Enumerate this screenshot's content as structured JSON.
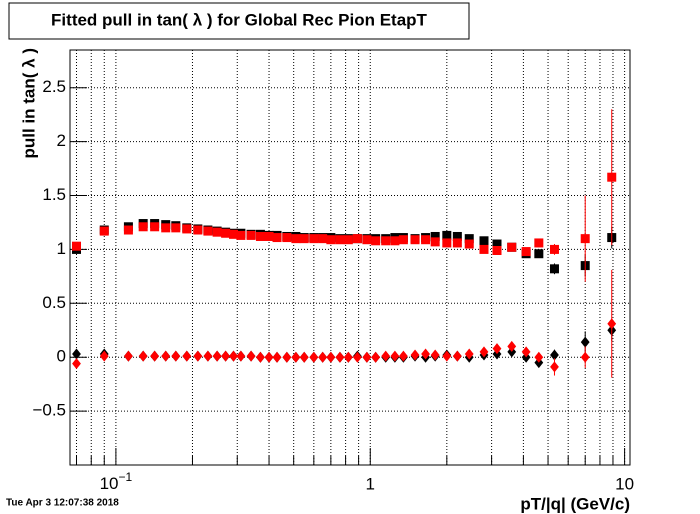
{
  "chart_data": {
    "type": "scatter",
    "title": "Fitted pull in tan( λ ) for Global Rec Pion EtapT",
    "x_label": "pT/|q| (GeV/c)",
    "y_label": "pull in tan( λ )",
    "footer": "Tue Apr  3 12:07:38 2018",
    "xscale": "log",
    "grid": true,
    "xlim": [
      0.066,
      10.5
    ],
    "ylim": [
      -1.0,
      2.85
    ],
    "xticks": [
      {
        "value": 0.1,
        "label": "10",
        "exponent": "−1"
      },
      1,
      10
    ],
    "xminorticks": [
      0.07,
      0.08,
      0.09,
      0.2,
      0.3,
      0.4,
      0.5,
      0.6,
      0.7,
      0.8,
      0.9,
      2,
      3,
      4,
      5,
      6,
      7,
      8,
      9
    ],
    "yticks": [
      {
        "value": -0.5,
        "label": "−0.5"
      },
      0,
      0.5,
      1,
      1.5,
      2,
      2.5
    ],
    "x": [
      0.07,
      0.09,
      0.112,
      0.128,
      0.142,
      0.157,
      0.172,
      0.19,
      0.21,
      0.23,
      0.25,
      0.27,
      0.29,
      0.31,
      0.34,
      0.37,
      0.4,
      0.43,
      0.47,
      0.51,
      0.55,
      0.6,
      0.65,
      0.7,
      0.76,
      0.82,
      0.89,
      0.97,
      1.05,
      1.15,
      1.25,
      1.35,
      1.5,
      1.65,
      1.8,
      2.0,
      2.2,
      2.45,
      2.8,
      3.15,
      3.6,
      4.1,
      4.6,
      5.3,
      7.0,
      8.9
    ],
    "series": [
      {
        "color": "#000000",
        "marker": "square",
        "values": [
          1.0,
          1.18,
          1.21,
          1.24,
          1.24,
          1.23,
          1.22,
          1.2,
          1.19,
          1.18,
          1.17,
          1.16,
          1.15,
          1.15,
          1.14,
          1.14,
          1.13,
          1.13,
          1.12,
          1.12,
          1.11,
          1.11,
          1.11,
          1.11,
          1.1,
          1.1,
          1.1,
          1.1,
          1.1,
          1.1,
          1.11,
          1.11,
          1.1,
          1.11,
          1.12,
          1.13,
          1.12,
          1.1,
          1.08,
          1.05,
          1.02,
          0.96,
          0.96,
          0.82,
          0.85,
          1.11
        ],
        "errors": [
          0.01,
          0.01,
          0.01,
          0.01,
          0.01,
          0.01,
          0.01,
          0.01,
          0.01,
          0.01,
          0.01,
          0.01,
          0.01,
          0.01,
          0.01,
          0.01,
          0.01,
          0.01,
          0.01,
          0.01,
          0.01,
          0.01,
          0.01,
          0.01,
          0.01,
          0.01,
          0.01,
          0.01,
          0.01,
          0.01,
          0.01,
          0.01,
          0.01,
          0.01,
          0.01,
          0.01,
          0.01,
          0.01,
          0.01,
          0.01,
          0.02,
          0.03,
          0.03,
          0.05,
          0.1,
          0.1
        ]
      },
      {
        "color": "#ff0000",
        "marker": "square",
        "values": [
          1.03,
          1.17,
          1.18,
          1.21,
          1.21,
          1.2,
          1.2,
          1.19,
          1.18,
          1.17,
          1.16,
          1.15,
          1.14,
          1.13,
          1.13,
          1.12,
          1.12,
          1.11,
          1.11,
          1.1,
          1.1,
          1.1,
          1.1,
          1.09,
          1.09,
          1.09,
          1.1,
          1.09,
          1.08,
          1.08,
          1.08,
          1.09,
          1.09,
          1.09,
          1.07,
          1.06,
          1.06,
          1.05,
          1.0,
          0.99,
          1.02,
          0.98,
          1.06,
          1.0,
          1.1,
          1.67
        ],
        "errors": [
          0.01,
          0.01,
          0.01,
          0.01,
          0.01,
          0.01,
          0.01,
          0.01,
          0.01,
          0.01,
          0.01,
          0.01,
          0.01,
          0.01,
          0.01,
          0.01,
          0.01,
          0.01,
          0.01,
          0.01,
          0.01,
          0.01,
          0.01,
          0.01,
          0.01,
          0.01,
          0.01,
          0.01,
          0.01,
          0.01,
          0.01,
          0.01,
          0.01,
          0.01,
          0.01,
          0.01,
          0.01,
          0.01,
          0.01,
          0.01,
          0.02,
          0.03,
          0.04,
          0.05,
          0.4,
          0.63
        ]
      },
      {
        "color": "#000000",
        "marker": "diamond",
        "values": [
          0.03,
          0.03,
          0.01,
          0.01,
          0.01,
          0.01,
          0.01,
          0.01,
          0.01,
          0.01,
          0.01,
          0.01,
          0.01,
          0.01,
          0.01,
          0.0,
          0.0,
          0.0,
          0.0,
          0.0,
          0.0,
          0.0,
          0.0,
          0.0,
          0.0,
          0.0,
          0.01,
          0.0,
          0.0,
          0.0,
          0.0,
          0.0,
          0.01,
          0.0,
          0.01,
          0.02,
          0.01,
          0.0,
          0.02,
          0.03,
          0.05,
          0.0,
          -0.05,
          0.02,
          0.14,
          0.25
        ],
        "errors": [
          0.01,
          0.01,
          0.01,
          0.01,
          0.01,
          0.01,
          0.01,
          0.01,
          0.01,
          0.01,
          0.01,
          0.01,
          0.01,
          0.01,
          0.01,
          0.01,
          0.01,
          0.01,
          0.01,
          0.01,
          0.01,
          0.01,
          0.01,
          0.01,
          0.01,
          0.01,
          0.01,
          0.01,
          0.01,
          0.01,
          0.01,
          0.01,
          0.01,
          0.01,
          0.01,
          0.01,
          0.01,
          0.01,
          0.01,
          0.01,
          0.02,
          0.03,
          0.04,
          0.05,
          0.1,
          0.1
        ]
      },
      {
        "color": "#ff0000",
        "marker": "diamond",
        "values": [
          -0.06,
          0.01,
          0.01,
          0.01,
          0.01,
          0.01,
          0.01,
          0.01,
          0.01,
          0.01,
          0.01,
          0.01,
          0.01,
          0.01,
          0.01,
          0.0,
          0.0,
          0.0,
          0.0,
          0.0,
          0.0,
          0.0,
          0.0,
          0.0,
          0.0,
          0.0,
          0.0,
          0.0,
          0.0,
          0.01,
          0.01,
          0.01,
          0.02,
          0.03,
          0.02,
          0.01,
          0.01,
          0.03,
          0.05,
          0.08,
          0.1,
          0.05,
          0.0,
          -0.09,
          0.0,
          0.31
        ],
        "errors": [
          0.01,
          0.01,
          0.01,
          0.01,
          0.01,
          0.01,
          0.01,
          0.01,
          0.01,
          0.01,
          0.01,
          0.01,
          0.01,
          0.01,
          0.01,
          0.01,
          0.01,
          0.01,
          0.01,
          0.01,
          0.01,
          0.01,
          0.01,
          0.01,
          0.01,
          0.01,
          0.01,
          0.01,
          0.01,
          0.01,
          0.01,
          0.01,
          0.01,
          0.01,
          0.01,
          0.01,
          0.01,
          0.01,
          0.01,
          0.01,
          0.02,
          0.03,
          0.04,
          0.08,
          0.1,
          0.5
        ]
      }
    ]
  }
}
